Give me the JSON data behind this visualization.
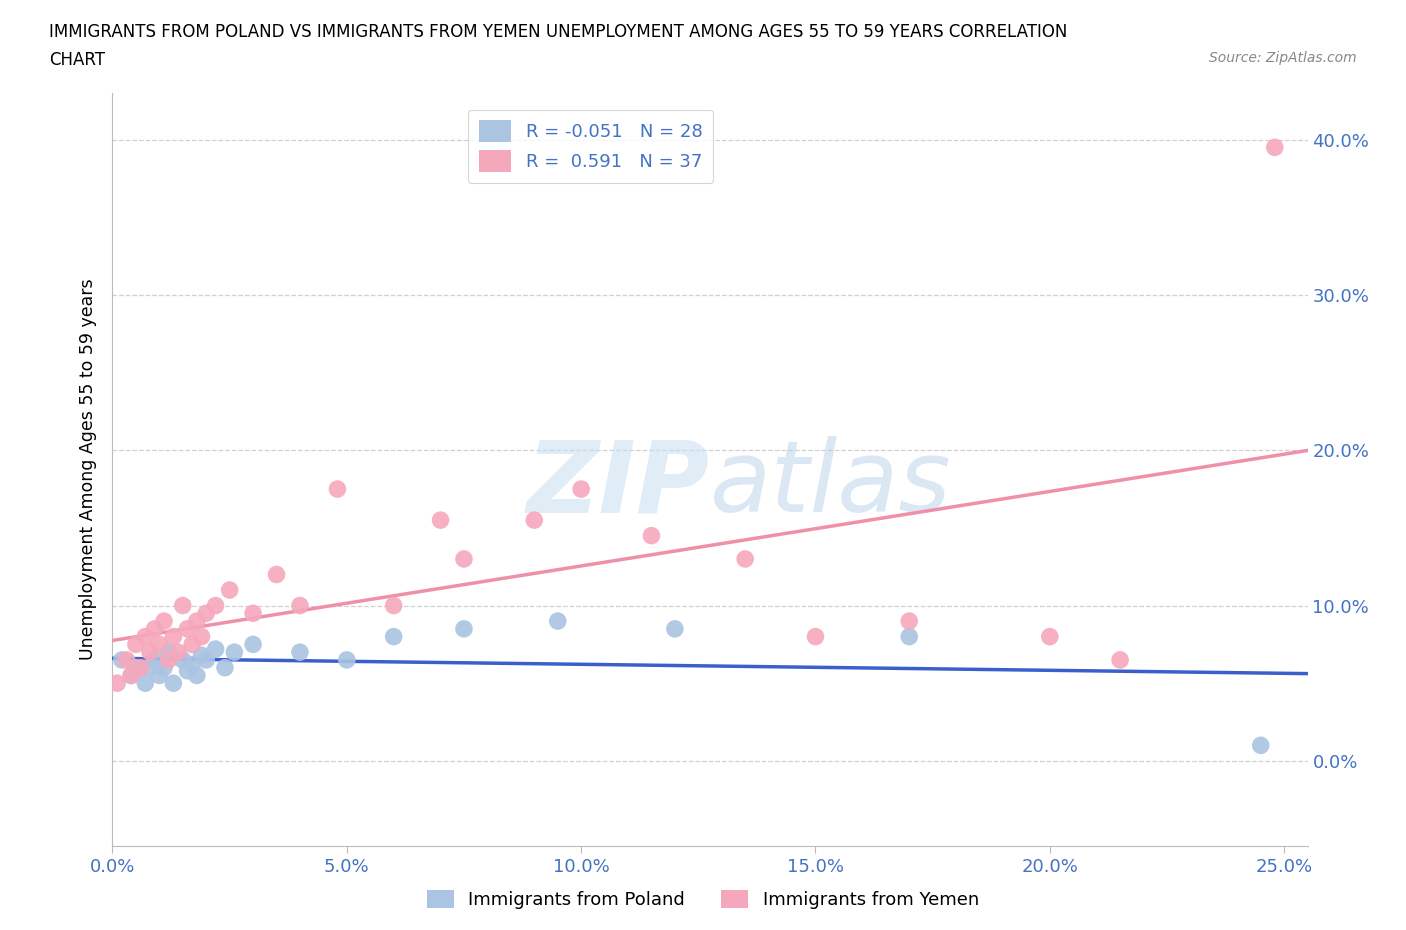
{
  "title_line1": "IMMIGRANTS FROM POLAND VS IMMIGRANTS FROM YEMEN UNEMPLOYMENT AMONG AGES 55 TO 59 YEARS CORRELATION",
  "title_line2": "CHART",
  "source": "Source: ZipAtlas.com",
  "xlabel_ticks": [
    "0.0%",
    "5.0%",
    "10.0%",
    "15.0%",
    "20.0%",
    "25.0%"
  ],
  "ylabel_ticks": [
    "0.0%",
    "10.0%",
    "20.0%",
    "30.0%",
    "40.0%"
  ],
  "ylabel_label": "Unemployment Among Ages 55 to 59 years",
  "xlim": [
    0.0,
    0.255
  ],
  "ylim": [
    -0.055,
    0.43
  ],
  "poland_R": -0.051,
  "poland_N": 28,
  "yemen_R": 0.591,
  "yemen_N": 37,
  "poland_color": "#aac4e2",
  "yemen_color": "#f5a8bc",
  "poland_line_color": "#3a5fcd",
  "yemen_line_color": "#f090a8",
  "watermark_zip": "ZIP",
  "watermark_atlas": "atlas",
  "legend_poland_label": "Immigrants from Poland",
  "legend_yemen_label": "Immigrants from Yemen",
  "poland_x": [
    0.002,
    0.004,
    0.005,
    0.007,
    0.008,
    0.009,
    0.01,
    0.011,
    0.012,
    0.013,
    0.015,
    0.016,
    0.017,
    0.018,
    0.019,
    0.02,
    0.022,
    0.024,
    0.026,
    0.03,
    0.04,
    0.05,
    0.06,
    0.075,
    0.095,
    0.12,
    0.17,
    0.245
  ],
  "poland_y": [
    0.065,
    0.055,
    0.06,
    0.05,
    0.06,
    0.065,
    0.055,
    0.06,
    0.07,
    0.05,
    0.065,
    0.058,
    0.062,
    0.055,
    0.068,
    0.065,
    0.072,
    0.06,
    0.07,
    0.075,
    0.07,
    0.065,
    0.08,
    0.085,
    0.09,
    0.085,
    0.08,
    0.01
  ],
  "yemen_x": [
    0.001,
    0.003,
    0.004,
    0.005,
    0.006,
    0.007,
    0.008,
    0.009,
    0.01,
    0.011,
    0.012,
    0.013,
    0.014,
    0.015,
    0.016,
    0.017,
    0.018,
    0.019,
    0.02,
    0.022,
    0.025,
    0.03,
    0.035,
    0.04,
    0.048,
    0.06,
    0.07,
    0.075,
    0.09,
    0.1,
    0.115,
    0.135,
    0.15,
    0.17,
    0.2,
    0.215,
    0.248
  ],
  "yemen_y": [
    0.05,
    0.065,
    0.055,
    0.075,
    0.06,
    0.08,
    0.07,
    0.085,
    0.075,
    0.09,
    0.065,
    0.08,
    0.07,
    0.1,
    0.085,
    0.075,
    0.09,
    0.08,
    0.095,
    0.1,
    0.11,
    0.095,
    0.12,
    0.1,
    0.175,
    0.1,
    0.155,
    0.13,
    0.155,
    0.175,
    0.145,
    0.13,
    0.08,
    0.09,
    0.08,
    0.065,
    0.395
  ],
  "background_color": "#ffffff",
  "grid_color": "#d0d0d0"
}
